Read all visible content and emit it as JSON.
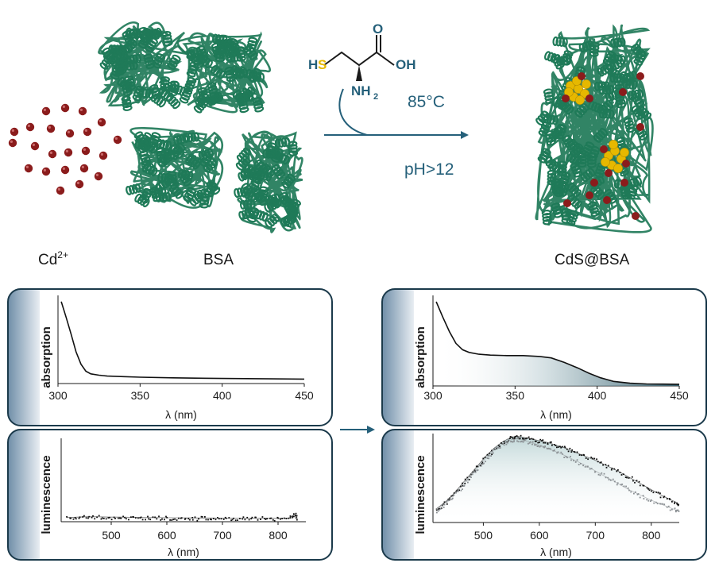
{
  "labels": {
    "cd_label": "Cd",
    "cd_charge": "2+",
    "bsa_label": "BSA",
    "product_label": "CdS@BSA",
    "temperature": "85°C",
    "ph": "pH>12",
    "molecule_s": "S",
    "molecule_h": "H",
    "molecule_o": "O",
    "molecule_oh": "OH",
    "molecule_nh": "NH",
    "molecule_nh_sub": "2"
  },
  "colors": {
    "protein": "#1f7a58",
    "cadmium": "#8b1c1c",
    "sulfur": "#e6b800",
    "arrow": "#25607a",
    "panel_border": "#1b3a4b",
    "panel_tab": "#6f8ea8",
    "fill_gradient": "#2f5b6a"
  },
  "chart_data": [
    {
      "type": "line",
      "name": "absorption-bsa",
      "ylabel": "absorption",
      "xlabel": "λ (nm)",
      "xlim": [
        300,
        450
      ],
      "xticks": [
        300,
        350,
        400,
        450
      ],
      "ylim": [
        0,
        1
      ],
      "x": [
        302,
        305,
        308,
        311,
        314,
        317,
        320,
        325,
        330,
        340,
        350,
        370,
        400,
        430,
        450
      ],
      "y": [
        0.93,
        0.75,
        0.56,
        0.36,
        0.22,
        0.14,
        0.11,
        0.095,
        0.085,
        0.078,
        0.072,
        0.065,
        0.058,
        0.053,
        0.05
      ]
    },
    {
      "type": "line",
      "name": "absorption-cds-bsa",
      "ylabel": "absorption",
      "xlabel": "λ (nm)",
      "xlim": [
        300,
        450
      ],
      "xticks": [
        300,
        350,
        400,
        450
      ],
      "ylim": [
        0,
        1
      ],
      "filled": true,
      "x": [
        302,
        306,
        310,
        314,
        318,
        322,
        328,
        335,
        345,
        355,
        365,
        372,
        380,
        388,
        395,
        402,
        410,
        420,
        430,
        440,
        450
      ],
      "y": [
        0.93,
        0.76,
        0.6,
        0.47,
        0.4,
        0.37,
        0.35,
        0.34,
        0.335,
        0.335,
        0.325,
        0.31,
        0.26,
        0.2,
        0.14,
        0.09,
        0.05,
        0.03,
        0.022,
        0.02,
        0.018
      ]
    },
    {
      "type": "scatter",
      "name": "luminescence-bsa",
      "ylabel": "luminescence",
      "xlabel": "λ (nm)",
      "xlim": [
        410,
        850
      ],
      "xticks": [
        500,
        600,
        700,
        800
      ],
      "ylim": [
        0,
        1
      ],
      "x": [
        420,
        440,
        460,
        480,
        500,
        520,
        540,
        560,
        580,
        600,
        620,
        640,
        660,
        680,
        700,
        720,
        740,
        760,
        780,
        800,
        820,
        830,
        835
      ],
      "y": [
        0.05,
        0.055,
        0.06,
        0.058,
        0.055,
        0.055,
        0.052,
        0.05,
        0.05,
        0.048,
        0.047,
        0.046,
        0.045,
        0.045,
        0.043,
        0.043,
        0.042,
        0.042,
        0.041,
        0.04,
        0.045,
        0.09,
        0.04
      ]
    },
    {
      "type": "scatter",
      "name": "luminescence-cds-bsa",
      "ylabel": "luminescence",
      "xlabel": "λ (nm)",
      "xlim": [
        410,
        850
      ],
      "xticks": [
        500,
        600,
        700,
        800
      ],
      "ylim": [
        0,
        1
      ],
      "filled": true,
      "series": [
        {
          "color": "#111111",
          "x": [
            415,
            430,
            445,
            460,
            475,
            490,
            505,
            520,
            535,
            550,
            560,
            570,
            585,
            600,
            615,
            630,
            645,
            660,
            680,
            700,
            720,
            740,
            760,
            780,
            800,
            820,
            840,
            850
          ],
          "y": [
            0.15,
            0.22,
            0.31,
            0.42,
            0.53,
            0.64,
            0.75,
            0.84,
            0.91,
            0.96,
            0.97,
            0.96,
            0.94,
            0.92,
            0.9,
            0.87,
            0.84,
            0.8,
            0.75,
            0.7,
            0.64,
            0.58,
            0.51,
            0.44,
            0.37,
            0.3,
            0.24,
            0.2
          ]
        },
        {
          "color": "#8a8f93",
          "x": [
            415,
            430,
            445,
            460,
            475,
            490,
            505,
            520,
            535,
            550,
            560,
            575,
            590,
            605,
            620,
            640,
            660,
            680,
            700,
            720,
            740,
            760,
            780,
            800,
            820,
            840,
            850
          ],
          "y": [
            0.14,
            0.21,
            0.3,
            0.4,
            0.51,
            0.62,
            0.73,
            0.82,
            0.89,
            0.93,
            0.94,
            0.92,
            0.89,
            0.86,
            0.82,
            0.77,
            0.71,
            0.65,
            0.58,
            0.51,
            0.44,
            0.37,
            0.31,
            0.25,
            0.2,
            0.15,
            0.12
          ]
        }
      ]
    }
  ]
}
